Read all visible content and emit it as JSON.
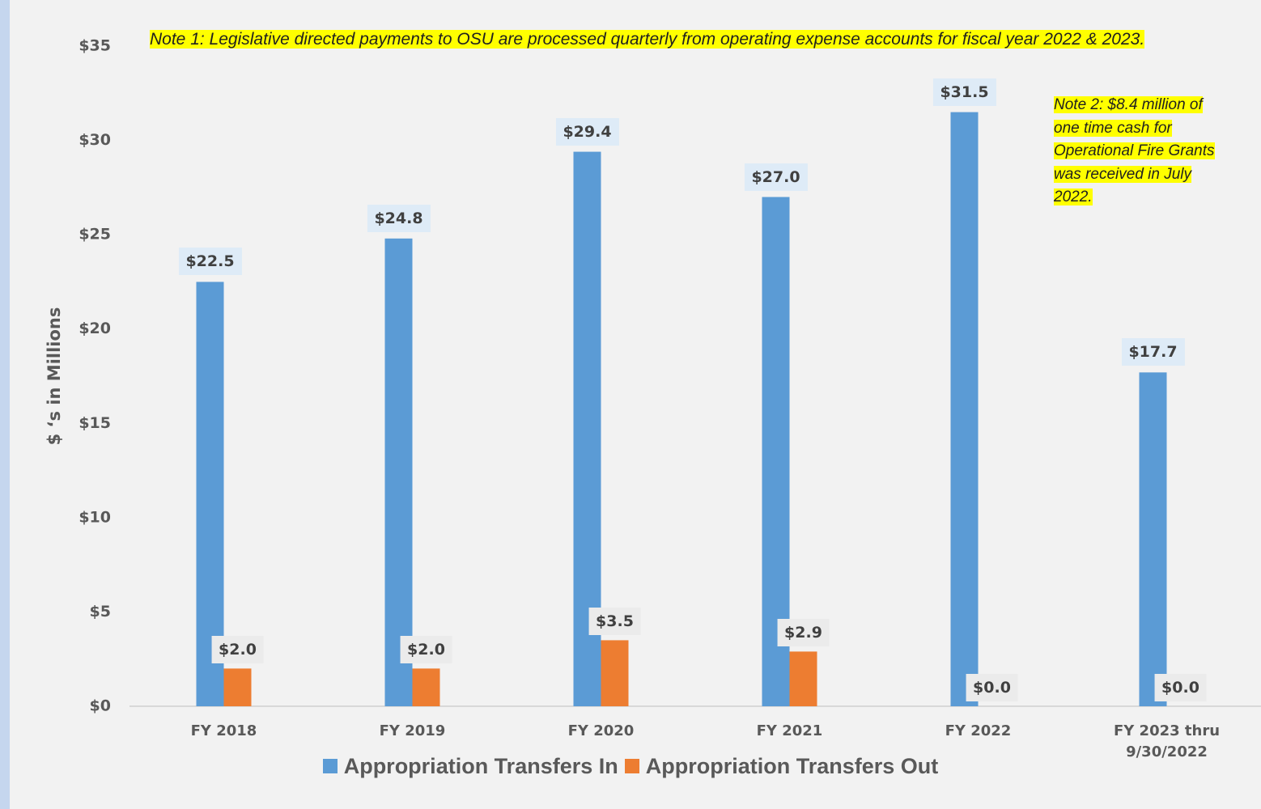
{
  "chart_data": {
    "type": "bar",
    "y_label": "$ ‘s in Millions",
    "categories": [
      "FY 2018",
      "FY 2019",
      "FY 2020",
      "FY 2021",
      "FY 2022",
      "FY 2023 thru 9/30/2022"
    ],
    "series": [
      {
        "name": "Appropriation Transfers In",
        "color": "#5b9bd5",
        "values": [
          22.5,
          24.8,
          29.4,
          27.0,
          31.5,
          17.7
        ],
        "value_labels": [
          "$22.5",
          "$24.8",
          "$29.4",
          "$27.0",
          "$31.5",
          "$17.7"
        ]
      },
      {
        "name": "Appropriation Transfers Out",
        "color": "#ed7d31",
        "values": [
          2.0,
          2.0,
          3.5,
          2.9,
          0.0,
          0.0
        ],
        "value_labels": [
          "$2.0",
          "$2.0",
          "$3.5",
          "$2.9",
          "$0.0",
          "$0.0"
        ]
      }
    ],
    "ylim": [
      0,
      35
    ],
    "yticks": [
      {
        "value": 0,
        "label": "$0"
      },
      {
        "value": 5,
        "label": "$5"
      },
      {
        "value": 10,
        "label": "$10"
      },
      {
        "value": 15,
        "label": "$15"
      },
      {
        "value": 20,
        "label": "$20"
      },
      {
        "value": 25,
        "label": "$25"
      },
      {
        "value": 30,
        "label": "$30"
      },
      {
        "value": 35,
        "label": "$35"
      }
    ],
    "grid": false,
    "legend": "bottom",
    "annotations": [
      "Note 1: Legislative directed payments to OSU are processed quarterly from operating expense accounts for fiscal year 2022 & 2023.",
      "Note 2: $8.4 million of one time cash for Operational Fire Grants was received in July 2022."
    ]
  }
}
